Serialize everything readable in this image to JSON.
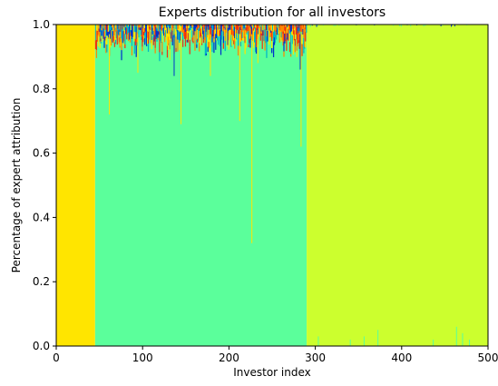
{
  "chart_data": {
    "type": "bar",
    "stacked": true,
    "title": "Experts distribution for all investors",
    "xlabel": "Investor index",
    "ylabel": "Percentage of expert attribution",
    "xlim": [
      0,
      500
    ],
    "ylim": [
      0.0,
      1.0
    ],
    "x_ticks": [
      0,
      100,
      200,
      300,
      400,
      500
    ],
    "y_ticks": [
      0.0,
      0.2,
      0.4,
      0.6,
      0.8,
      1.0
    ],
    "x_tick_labels": [
      "0",
      "100",
      "200",
      "300",
      "400",
      "500"
    ],
    "y_tick_labels": [
      "0.0",
      "0.2",
      "0.4",
      "0.6",
      "0.8",
      "1.0"
    ],
    "grid": false,
    "legend": "none",
    "series_colors": {
      "yellow_expert": "#FFE500",
      "green_expert": "#5BFF9B",
      "lime_expert": "#CCFF2E",
      "blue_expert": "#0033CC",
      "red_expert": "#EE3311",
      "orange_expert": "#FF8800",
      "teal_expert": "#00B4C8"
    },
    "segments": [
      {
        "x_range": [
          0,
          45
        ],
        "dominant": "yellow_expert",
        "share": 1.0
      },
      {
        "x_range": [
          45,
          290
        ],
        "dominant": "green_expert",
        "share_range": [
          0.86,
          0.99
        ]
      },
      {
        "x_range": [
          290,
          500
        ],
        "dominant": "lime_expert",
        "share_range": [
          0.94,
          1.0
        ]
      }
    ],
    "notable_bars": [
      {
        "x": 61,
        "y_low": 0.72,
        "color": "yellow_expert"
      },
      {
        "x": 94,
        "y_low": 0.85,
        "color": "yellow_expert"
      },
      {
        "x": 131,
        "y_low": 0.89,
        "color": "yellow_expert"
      },
      {
        "x": 144,
        "y_low": 0.69,
        "color": "yellow_expert"
      },
      {
        "x": 178,
        "y_low": 0.84,
        "color": "yellow_expert"
      },
      {
        "x": 212,
        "y_low": 0.7,
        "color": "yellow_expert"
      },
      {
        "x": 226,
        "y_low": 0.32,
        "color": "yellow_expert"
      },
      {
        "x": 233,
        "y_low": 0.88,
        "color": "yellow_expert"
      },
      {
        "x": 283,
        "y_low": 0.62,
        "color": "yellow_expert"
      },
      {
        "x": 136,
        "y_low": 0.84,
        "color": "blue_expert"
      },
      {
        "x": 282,
        "y_low": 0.86,
        "color": "blue_expert"
      }
    ],
    "lime_bottom_spikes": [
      {
        "x": 303,
        "height": 0.03,
        "color": "green_expert"
      },
      {
        "x": 340,
        "height": 0.02,
        "color": "green_expert"
      },
      {
        "x": 356,
        "height": 0.03,
        "color": "green_expert"
      },
      {
        "x": 372,
        "height": 0.05,
        "color": "green_expert"
      },
      {
        "x": 436,
        "height": 0.02,
        "color": "green_expert"
      },
      {
        "x": 463,
        "height": 0.06,
        "color": "green_expert"
      },
      {
        "x": 470,
        "height": 0.04,
        "color": "green_expert"
      },
      {
        "x": 478,
        "height": 0.02,
        "color": "green_expert"
      }
    ]
  }
}
